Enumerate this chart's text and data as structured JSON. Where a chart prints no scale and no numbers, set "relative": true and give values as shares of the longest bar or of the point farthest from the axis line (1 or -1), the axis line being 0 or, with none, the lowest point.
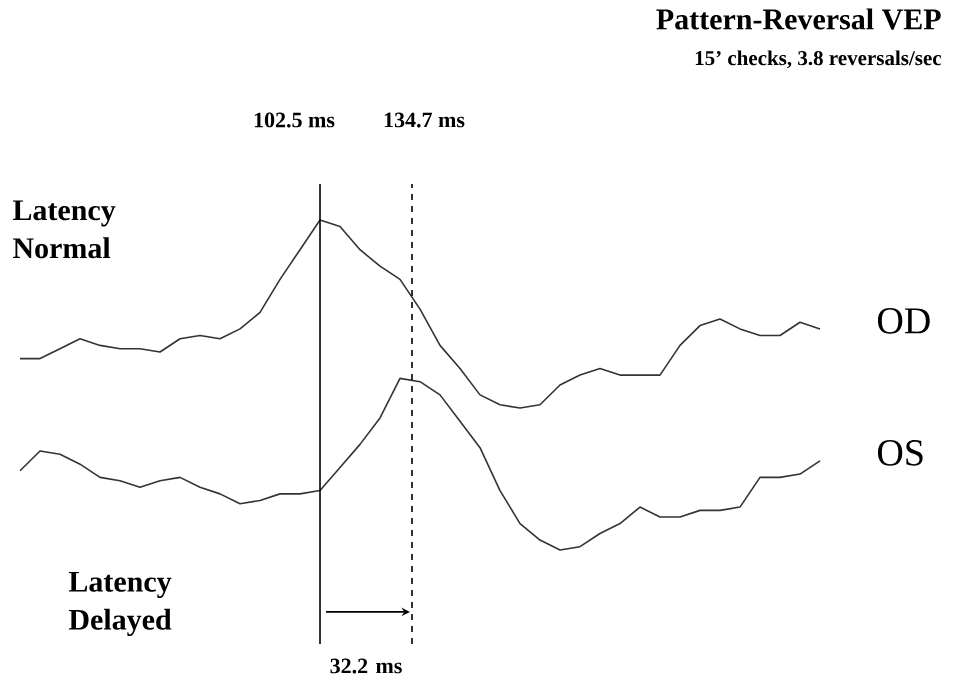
{
  "chart_data": {
    "type": "line",
    "relative": true,
    "title": "Pattern-Reversal VEP",
    "subtitle": "15’ checks, 3.8 reversals/sec",
    "annotations": [
      "Latency Normal",
      "Latency Delayed",
      "32.2 ms",
      "102.5 ms",
      "134.7 ms"
    ],
    "categories": [
      null,
      null,
      null,
      null,
      null,
      null,
      null,
      null,
      null,
      null,
      null,
      null,
      null,
      null,
      null,
      null,
      null,
      null,
      null,
      null,
      null,
      null,
      null,
      null,
      null,
      null,
      null,
      null,
      null,
      null,
      null,
      null,
      null,
      null,
      null,
      null,
      null,
      null,
      null,
      null,
      null
    ],
    "series": [
      {
        "name": "OD",
        "color": "#333333",
        "values": [
          0.58,
          0.58,
          0.61,
          0.64,
          0.62,
          0.61,
          0.61,
          0.6,
          0.64,
          0.65,
          0.64,
          0.67,
          0.72,
          0.82,
          0.91,
          1.0,
          0.98,
          0.91,
          0.86,
          0.82,
          0.73,
          0.62,
          0.55,
          0.47,
          0.44,
          0.43,
          0.44,
          0.5,
          0.53,
          0.55,
          0.53,
          0.53,
          0.53,
          0.62,
          0.68,
          0.7,
          0.67,
          0.65,
          0.65,
          0.69,
          0.67
        ]
      },
      {
        "name": "OS",
        "color": "#333333",
        "values": [
          0.24,
          0.3,
          0.29,
          0.26,
          0.22,
          0.21,
          0.19,
          0.21,
          0.22,
          0.19,
          0.17,
          0.14,
          0.15,
          0.17,
          0.17,
          0.18,
          0.25,
          0.32,
          0.4,
          0.52,
          0.51,
          0.47,
          0.39,
          0.31,
          0.18,
          0.08,
          0.03,
          0.0,
          0.01,
          0.05,
          0.08,
          0.13,
          0.1,
          0.1,
          0.12,
          0.12,
          0.13,
          0.22,
          0.22,
          0.23,
          0.27
        ]
      }
    ]
  }
}
